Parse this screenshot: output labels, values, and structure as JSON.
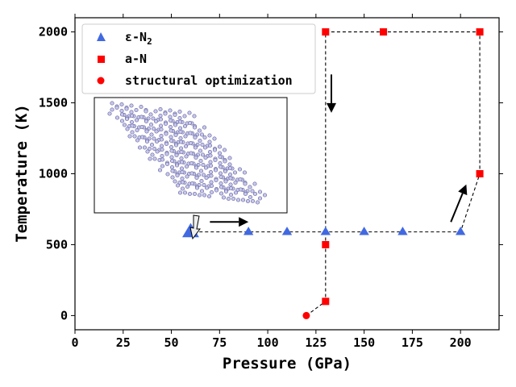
{
  "chart_data": {
    "type": "scatter",
    "xlabel": "Pressure (GPa)",
    "ylabel": "Temperature (K)",
    "xlim": [
      0,
      220
    ],
    "ylim": [
      -100,
      2100
    ],
    "xticks": [
      0,
      25,
      50,
      75,
      100,
      125,
      150,
      175,
      200
    ],
    "yticks": [
      0,
      500,
      1000,
      1500,
      2000
    ],
    "legend_position": "upper-left",
    "series": [
      {
        "name": "ε-N2",
        "label_main": "ε-N",
        "label_sub": "2",
        "marker": "triangle",
        "color": "#4169e1",
        "points": [
          [
            90,
            590
          ],
          [
            110,
            590
          ],
          [
            130,
            590
          ],
          [
            150,
            590
          ],
          [
            170,
            590
          ],
          [
            200,
            590
          ]
        ],
        "large_points": [
          [
            60,
            590
          ]
        ]
      },
      {
        "name": "a-N",
        "label_main": "a-N",
        "marker": "square",
        "color": "#ff0000",
        "points": [
          [
            130,
            100
          ],
          [
            130,
            500
          ],
          [
            130,
            2000
          ],
          [
            160,
            2000
          ],
          [
            210,
            2000
          ],
          [
            210,
            1000
          ]
        ]
      },
      {
        "name": "structural optimization",
        "label_main": "structural optimization",
        "marker": "circle",
        "color": "#ff0000",
        "points": [
          [
            120,
            0
          ]
        ]
      }
    ],
    "dashed_path": [
      [
        120,
        0
      ],
      [
        130,
        100
      ],
      [
        130,
        2000
      ],
      [
        210,
        2000
      ],
      [
        210,
        1000
      ],
      [
        200,
        590
      ],
      [
        60,
        590
      ]
    ],
    "inset": {
      "description": "crystal structure",
      "pointer": "hollow arrow from inset to large triangle"
    },
    "arrows": [
      {
        "from": [
          70,
          660
        ],
        "to": [
          90,
          660
        ]
      },
      {
        "from": [
          195,
          660
        ],
        "to": [
          203,
          925
        ]
      },
      {
        "from": [
          133,
          1700
        ],
        "to": [
          133,
          1430
        ]
      }
    ]
  }
}
